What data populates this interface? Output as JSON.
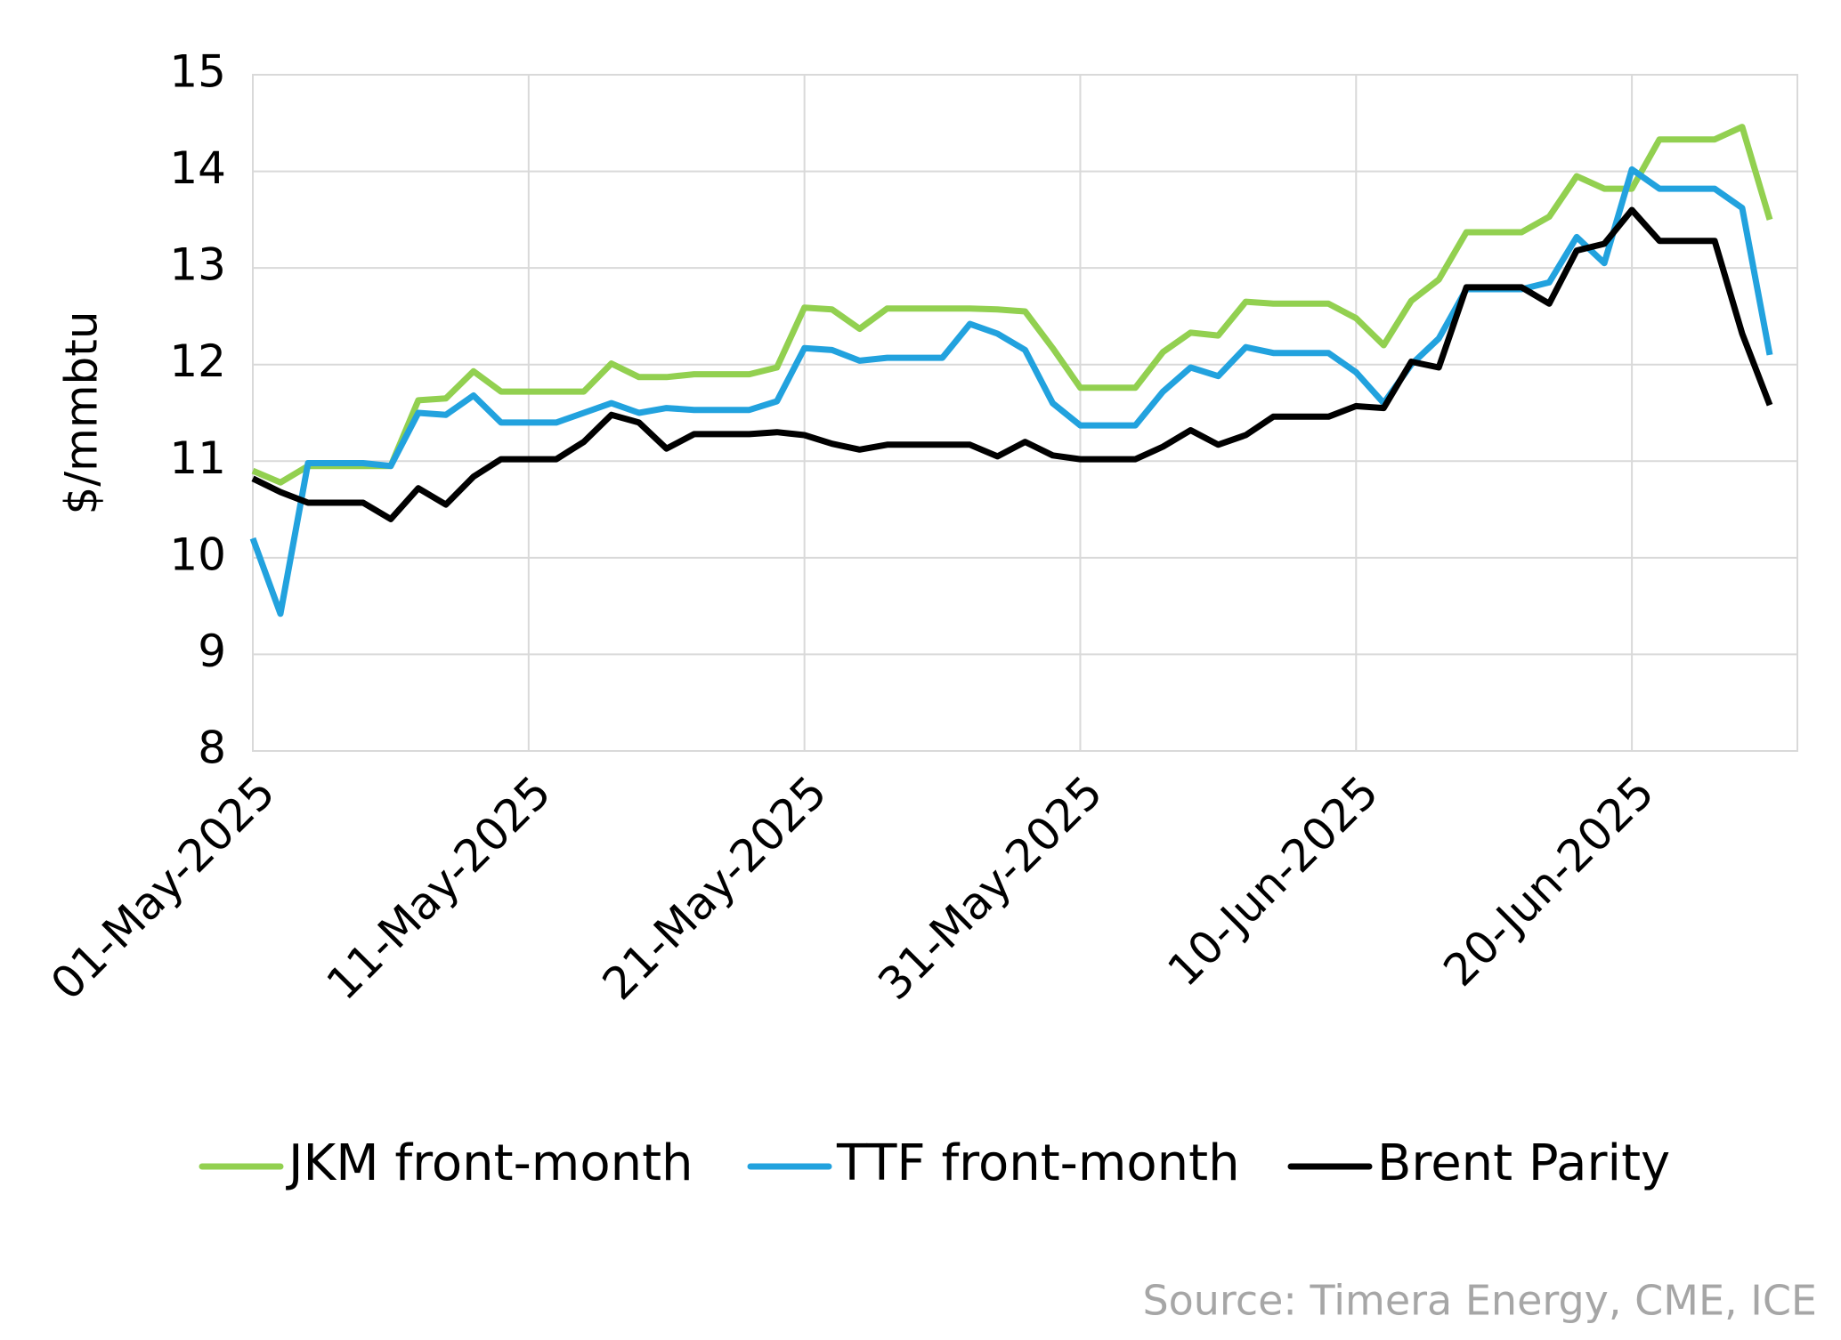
{
  "chart_data": {
    "type": "line",
    "y_label": "$/mmbtu",
    "source": "Source: Timera Energy, CME, ICE",
    "x": [
      "2025-05-01",
      "2025-05-02",
      "2025-05-03",
      "2025-05-04",
      "2025-05-05",
      "2025-05-06",
      "2025-05-07",
      "2025-05-08",
      "2025-05-09",
      "2025-05-10",
      "2025-05-11",
      "2025-05-12",
      "2025-05-13",
      "2025-05-14",
      "2025-05-15",
      "2025-05-16",
      "2025-05-17",
      "2025-05-18",
      "2025-05-19",
      "2025-05-20",
      "2025-05-21",
      "2025-05-22",
      "2025-05-23",
      "2025-05-24",
      "2025-05-25",
      "2025-05-26",
      "2025-05-27",
      "2025-05-28",
      "2025-05-29",
      "2025-05-30",
      "2025-05-31",
      "2025-06-01",
      "2025-06-02",
      "2025-06-03",
      "2025-06-04",
      "2025-06-05",
      "2025-06-06",
      "2025-06-07",
      "2025-06-08",
      "2025-06-09",
      "2025-06-10",
      "2025-06-11",
      "2025-06-12",
      "2025-06-13",
      "2025-06-14",
      "2025-06-15",
      "2025-06-16",
      "2025-06-17",
      "2025-06-18",
      "2025-06-19",
      "2025-06-20",
      "2025-06-21",
      "2025-06-22",
      "2025-06-23",
      "2025-06-24",
      "2025-06-25"
    ],
    "series": [
      {
        "name": "JKM front-month",
        "color": "#92d050",
        "values": [
          10.9,
          10.78,
          10.95,
          10.95,
          10.95,
          10.95,
          11.63,
          11.65,
          11.93,
          11.72,
          11.72,
          11.72,
          11.72,
          12.01,
          11.87,
          11.87,
          11.9,
          11.9,
          11.9,
          11.97,
          12.59,
          12.57,
          12.37,
          12.58,
          12.58,
          12.58,
          12.58,
          12.57,
          12.55,
          12.17,
          11.76,
          11.76,
          11.76,
          12.13,
          12.33,
          12.3,
          12.65,
          12.63,
          12.63,
          12.63,
          12.48,
          12.2,
          12.66,
          12.88,
          13.37,
          13.37,
          13.37,
          13.53,
          13.95,
          13.82,
          13.82,
          14.33,
          14.33,
          14.33,
          14.46,
          13.5
        ]
      },
      {
        "name": "TTF front-month",
        "color": "#22a2de",
        "values": [
          10.2,
          9.42,
          10.98,
          10.98,
          10.98,
          10.95,
          11.5,
          11.48,
          11.68,
          11.4,
          11.4,
          11.4,
          11.5,
          11.6,
          11.5,
          11.55,
          11.53,
          11.53,
          11.53,
          11.62,
          12.17,
          12.15,
          12.04,
          12.07,
          12.07,
          12.07,
          12.42,
          12.32,
          12.15,
          11.6,
          11.37,
          11.37,
          11.37,
          11.72,
          11.97,
          11.88,
          12.18,
          12.12,
          12.12,
          12.12,
          11.92,
          11.6,
          12.0,
          12.27,
          12.78,
          12.78,
          12.78,
          12.85,
          13.32,
          13.05,
          14.02,
          13.82,
          13.82,
          13.82,
          13.62,
          12.1
        ]
      },
      {
        "name": "Brent Parity",
        "color": "#000000",
        "values": [
          10.82,
          10.68,
          10.57,
          10.57,
          10.57,
          10.4,
          10.72,
          10.55,
          10.84,
          11.02,
          11.02,
          11.02,
          11.2,
          11.48,
          11.4,
          11.13,
          11.28,
          11.28,
          11.28,
          11.3,
          11.27,
          11.18,
          11.12,
          11.17,
          11.17,
          11.17,
          11.17,
          11.05,
          11.2,
          11.06,
          11.02,
          11.02,
          11.02,
          11.15,
          11.32,
          11.17,
          11.27,
          11.46,
          11.46,
          11.46,
          11.57,
          11.55,
          12.03,
          11.97,
          12.8,
          12.8,
          12.8,
          12.63,
          13.18,
          13.25,
          13.6,
          13.28,
          13.28,
          13.28,
          12.32,
          11.58
        ]
      }
    ],
    "xlim": [
      "2025-05-01",
      "2025-06-26"
    ],
    "xticks": [
      {
        "value": "2025-05-01",
        "label": "01-May-2025"
      },
      {
        "value": "2025-05-11",
        "label": "11-May-2025"
      },
      {
        "value": "2025-05-21",
        "label": "21-May-2025"
      },
      {
        "value": "2025-05-31",
        "label": "31-May-2025"
      },
      {
        "value": "2025-06-10",
        "label": "10-Jun-2025"
      },
      {
        "value": "2025-06-20",
        "label": "20-Jun-2025"
      }
    ],
    "ylim": [
      8,
      15
    ],
    "yticks": [
      8,
      9,
      10,
      11,
      12,
      13,
      14,
      15
    ],
    "grid": true,
    "legend": "bottom"
  }
}
